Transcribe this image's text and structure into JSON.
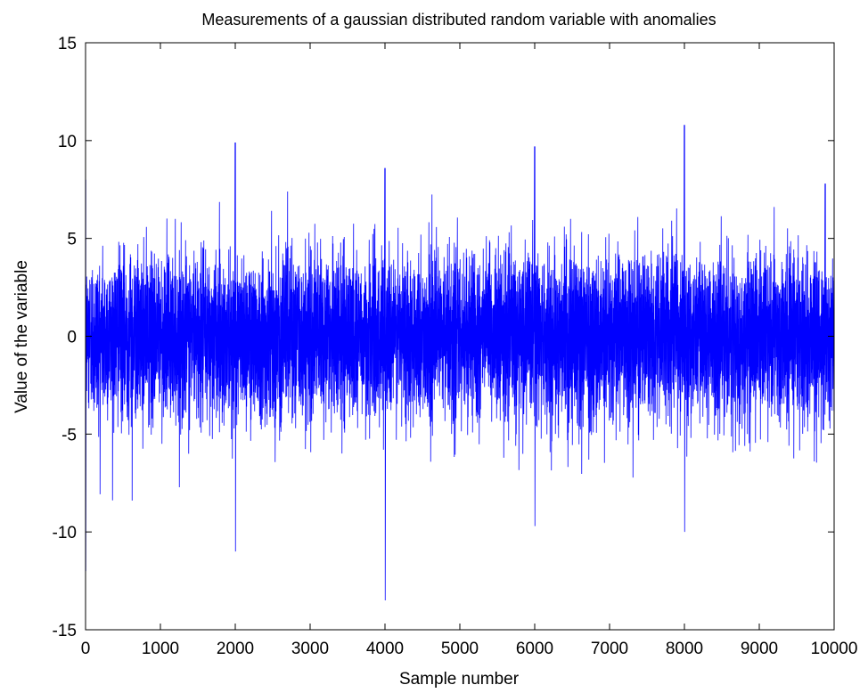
{
  "chart_data": {
    "type": "line",
    "title": "Measurements of a gaussian distributed random variable with anomalies",
    "xlabel": "Sample number",
    "ylabel": "Value of the variable",
    "xlim": [
      0,
      10000
    ],
    "ylim": [
      -15,
      15
    ],
    "xticks": [
      "0",
      "1000",
      "2000",
      "3000",
      "4000",
      "5000",
      "6000",
      "7000",
      "8000",
      "9000",
      "10000"
    ],
    "yticks": [
      "-15",
      "-10",
      "-5",
      "0",
      "5",
      "10",
      "15"
    ],
    "grid": false,
    "legend": "none",
    "series": [
      {
        "color": "#0000ff",
        "sample_count": 10000,
        "noise_std": 2,
        "anomalies": [
          {
            "x": 1,
            "y": 8
          },
          {
            "x": 2,
            "y": -12
          },
          {
            "x": 620,
            "y": -8.4
          },
          {
            "x": 2000,
            "y": 9.9
          },
          {
            "x": 2001,
            "y": -11
          },
          {
            "x": 2700,
            "y": 7.4
          },
          {
            "x": 4000,
            "y": 8.6
          },
          {
            "x": 4001,
            "y": -13.5
          },
          {
            "x": 6000,
            "y": 9.7
          },
          {
            "x": 6001,
            "y": -9.7
          },
          {
            "x": 8000,
            "y": 10.8
          },
          {
            "x": 8001,
            "y": -10
          },
          {
            "x": 9880,
            "y": 7.8
          }
        ]
      }
    ]
  },
  "style": {
    "line_color": "#0000ff",
    "axis_color": "#000000",
    "background": "#ffffff"
  }
}
